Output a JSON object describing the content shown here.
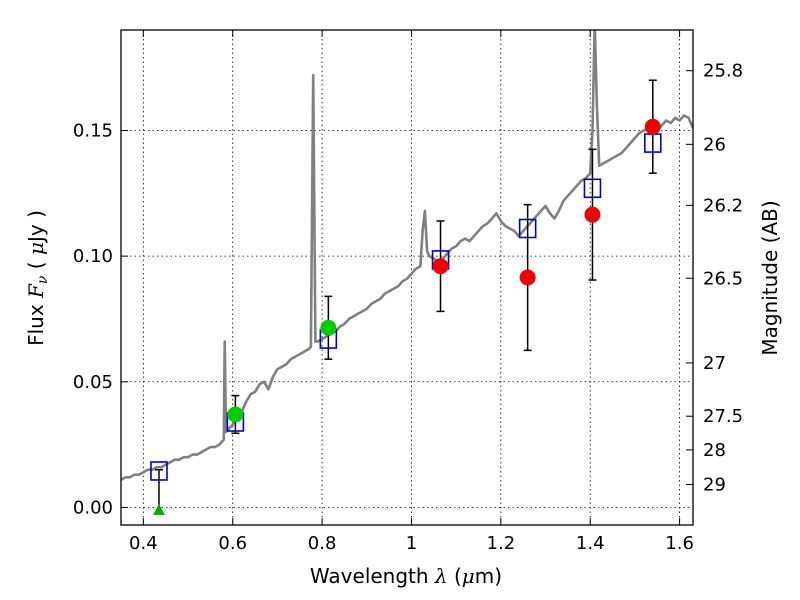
{
  "chart_data": {
    "type": "scatter",
    "title": "",
    "xlabel_pre": "Wavelength ",
    "xlabel_sym": "λ",
    "xlabel_post": " (",
    "xlabel_mu": "μ",
    "xlabel_unit": "m)",
    "ylabel_pre": "Flux ",
    "ylabel_sym": "F",
    "ylabel_sub": "ν",
    "ylabel_open": " ( ",
    "ylabel_mu": "μ",
    "ylabel_unit": "Jy )",
    "y2label": "Magnitude (AB)",
    "xlim": [
      0.35,
      1.63
    ],
    "ylim": [
      -0.007,
      0.19
    ],
    "x_ticks": [
      0.4,
      0.6,
      0.8,
      1.0,
      1.2,
      1.4,
      1.6
    ],
    "x_tick_labels": [
      "0.4",
      "0.6",
      "0.8",
      "1",
      "1.2",
      "1.4",
      "1.6"
    ],
    "y_ticks": [
      0.0,
      0.05,
      0.1,
      0.15
    ],
    "y_tick_labels": [
      "0.00",
      "0.05",
      "0.10",
      "0.15"
    ],
    "y2_ticks": [
      {
        "label": "25.8",
        "flux": 0.1738
      },
      {
        "label": "26",
        "flux": 0.1445
      },
      {
        "label": "26.2",
        "flux": 0.1202
      },
      {
        "label": "26.5",
        "flux": 0.0912
      },
      {
        "label": "27",
        "flux": 0.0575
      },
      {
        "label": "27.5",
        "flux": 0.0363
      },
      {
        "label": "28",
        "flux": 0.0229
      },
      {
        "label": "29",
        "flux": 0.0091
      }
    ],
    "grid": true,
    "series": [
      {
        "kind": "model_spectrum",
        "color": "#808080",
        "points": [
          [
            0.35,
            0.011
          ],
          [
            0.36,
            0.012
          ],
          [
            0.37,
            0.012
          ],
          [
            0.38,
            0.013
          ],
          [
            0.39,
            0.013
          ],
          [
            0.4,
            0.014
          ],
          [
            0.41,
            0.015
          ],
          [
            0.42,
            0.015
          ],
          [
            0.43,
            0.016
          ],
          [
            0.44,
            0.016
          ],
          [
            0.45,
            0.017
          ],
          [
            0.46,
            0.018
          ],
          [
            0.47,
            0.019
          ],
          [
            0.48,
            0.019
          ],
          [
            0.49,
            0.02
          ],
          [
            0.5,
            0.02
          ],
          [
            0.51,
            0.021
          ],
          [
            0.52,
            0.021
          ],
          [
            0.53,
            0.022
          ],
          [
            0.54,
            0.023
          ],
          [
            0.55,
            0.024
          ],
          [
            0.56,
            0.024
          ],
          [
            0.57,
            0.025
          ],
          [
            0.575,
            0.026
          ],
          [
            0.58,
            0.027
          ],
          [
            0.582,
            0.066
          ],
          [
            0.585,
            0.03
          ],
          [
            0.59,
            0.031
          ],
          [
            0.6,
            0.033
          ],
          [
            0.61,
            0.036
          ],
          [
            0.62,
            0.038
          ],
          [
            0.63,
            0.042
          ],
          [
            0.64,
            0.045
          ],
          [
            0.65,
            0.046
          ],
          [
            0.66,
            0.049
          ],
          [
            0.67,
            0.05
          ],
          [
            0.68,
            0.047
          ],
          [
            0.69,
            0.052
          ],
          [
            0.7,
            0.055
          ],
          [
            0.71,
            0.056
          ],
          [
            0.72,
            0.057
          ],
          [
            0.73,
            0.059
          ],
          [
            0.74,
            0.06
          ],
          [
            0.75,
            0.061
          ],
          [
            0.76,
            0.062
          ],
          [
            0.77,
            0.063
          ],
          [
            0.775,
            0.064
          ],
          [
            0.78,
            0.172
          ],
          [
            0.785,
            0.066
          ],
          [
            0.79,
            0.066
          ],
          [
            0.8,
            0.067
          ],
          [
            0.81,
            0.068
          ],
          [
            0.82,
            0.069
          ],
          [
            0.83,
            0.07
          ],
          [
            0.84,
            0.072
          ],
          [
            0.85,
            0.073
          ],
          [
            0.86,
            0.075
          ],
          [
            0.87,
            0.076
          ],
          [
            0.88,
            0.077
          ],
          [
            0.89,
            0.078
          ],
          [
            0.9,
            0.079
          ],
          [
            0.91,
            0.081
          ],
          [
            0.92,
            0.082
          ],
          [
            0.93,
            0.083
          ],
          [
            0.94,
            0.085
          ],
          [
            0.95,
            0.086
          ],
          [
            0.96,
            0.087
          ],
          [
            0.97,
            0.088
          ],
          [
            0.98,
            0.09
          ],
          [
            0.99,
            0.091
          ],
          [
            1.0,
            0.093
          ],
          [
            1.01,
            0.095
          ],
          [
            1.02,
            0.096
          ],
          [
            1.025,
            0.11
          ],
          [
            1.03,
            0.118
          ],
          [
            1.035,
            0.102
          ],
          [
            1.04,
            0.1
          ],
          [
            1.05,
            0.099
          ],
          [
            1.06,
            0.098
          ],
          [
            1.07,
            0.099
          ],
          [
            1.08,
            0.101
          ],
          [
            1.09,
            0.103
          ],
          [
            1.1,
            0.104
          ],
          [
            1.11,
            0.106
          ],
          [
            1.12,
            0.107
          ],
          [
            1.13,
            0.106
          ],
          [
            1.14,
            0.108
          ],
          [
            1.15,
            0.11
          ],
          [
            1.16,
            0.112
          ],
          [
            1.17,
            0.113
          ],
          [
            1.18,
            0.115
          ],
          [
            1.19,
            0.117
          ],
          [
            1.2,
            0.114
          ],
          [
            1.21,
            0.112
          ],
          [
            1.22,
            0.111
          ],
          [
            1.23,
            0.11
          ],
          [
            1.24,
            0.108
          ],
          [
            1.25,
            0.11
          ],
          [
            1.26,
            0.112
          ],
          [
            1.27,
            0.114
          ],
          [
            1.28,
            0.116
          ],
          [
            1.29,
            0.118
          ],
          [
            1.3,
            0.12
          ],
          [
            1.31,
            0.117
          ],
          [
            1.32,
            0.115
          ],
          [
            1.33,
            0.118
          ],
          [
            1.34,
            0.122
          ],
          [
            1.35,
            0.124
          ],
          [
            1.36,
            0.126
          ],
          [
            1.37,
            0.128
          ],
          [
            1.38,
            0.13
          ],
          [
            1.39,
            0.131
          ],
          [
            1.4,
            0.133
          ],
          [
            1.405,
            0.15
          ],
          [
            1.41,
            0.193
          ],
          [
            1.415,
            0.16
          ],
          [
            1.42,
            0.136
          ],
          [
            1.43,
            0.137
          ],
          [
            1.44,
            0.138
          ],
          [
            1.45,
            0.139
          ],
          [
            1.46,
            0.14
          ],
          [
            1.47,
            0.141
          ],
          [
            1.48,
            0.143
          ],
          [
            1.49,
            0.145
          ],
          [
            1.5,
            0.147
          ],
          [
            1.51,
            0.149
          ],
          [
            1.52,
            0.15
          ],
          [
            1.53,
            0.151
          ],
          [
            1.54,
            0.152
          ],
          [
            1.55,
            0.15
          ],
          [
            1.56,
            0.152
          ],
          [
            1.57,
            0.154
          ],
          [
            1.58,
            0.153
          ],
          [
            1.59,
            0.155
          ],
          [
            1.6,
            0.154
          ],
          [
            1.61,
            0.156
          ],
          [
            1.62,
            0.155
          ],
          [
            1.63,
            0.151
          ]
        ]
      },
      {
        "kind": "model_photometry",
        "marker": "open-square",
        "color": "#0000cc",
        "points": [
          [
            0.435,
            0.0145
          ],
          [
            0.606,
            0.034
          ],
          [
            0.814,
            0.067
          ],
          [
            1.065,
            0.0985
          ],
          [
            1.26,
            0.111
          ],
          [
            1.405,
            0.127
          ],
          [
            1.54,
            0.145
          ]
        ]
      },
      {
        "kind": "observed_hst_optical",
        "marker": "filled-circle",
        "color": "#00cc00",
        "points": [
          {
            "x": 0.606,
            "y": 0.037,
            "err": 0.0075
          },
          {
            "x": 0.814,
            "y": 0.0715,
            "err": 0.0125
          }
        ]
      },
      {
        "kind": "observed_nondetection",
        "marker": "filled-triangle",
        "color": "#00aa00",
        "points": [
          {
            "x": 0.435,
            "y": -0.001,
            "err_up": 0.016
          }
        ]
      },
      {
        "kind": "observed_hst_ir",
        "marker": "filled-circle",
        "color": "#ee0000",
        "points": [
          {
            "x": 1.065,
            "y": 0.096,
            "err": 0.018
          },
          {
            "x": 1.26,
            "y": 0.0915,
            "err": 0.029
          },
          {
            "x": 1.405,
            "y": 0.1165,
            "err": 0.026
          },
          {
            "x": 1.54,
            "y": 0.1515,
            "err": 0.0185
          }
        ]
      }
    ]
  }
}
